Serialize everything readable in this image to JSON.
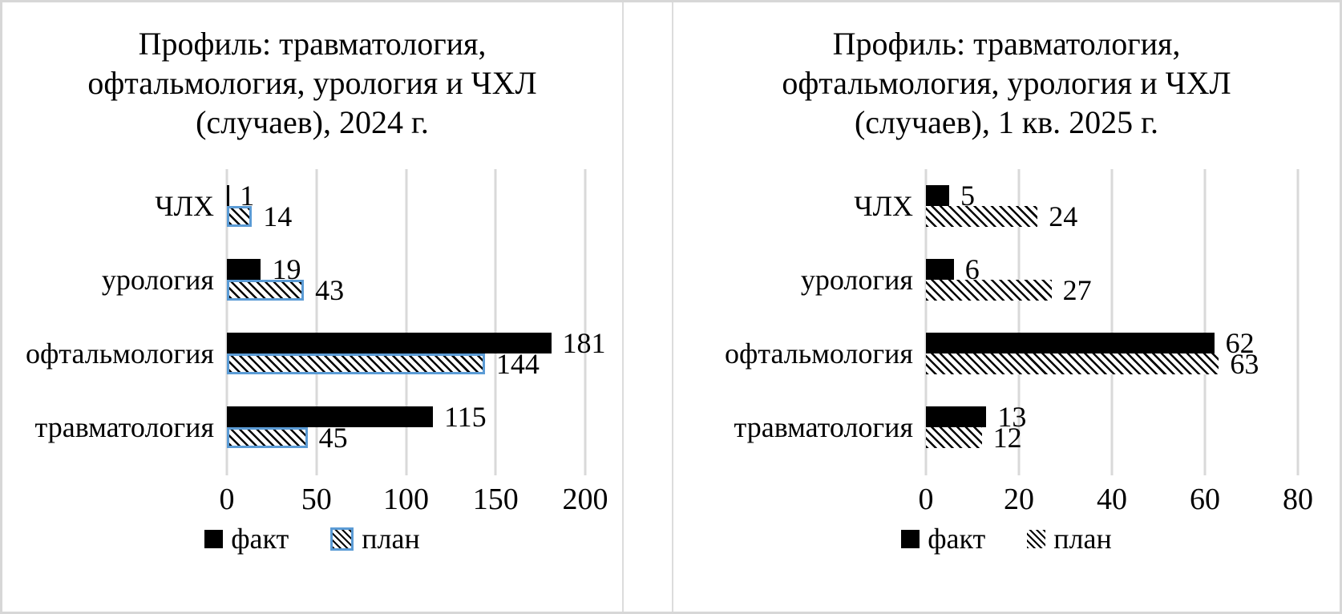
{
  "colors": {
    "bar_fill": "#000000",
    "plan_border_accent": "#5b9bd5",
    "gridline": "#d9d9d9",
    "frame_border": "#d7d7d7",
    "chart_divider": "#dcdcdc",
    "background": "#ffffff"
  },
  "chart_data": [
    {
      "type": "bar",
      "orientation": "horizontal",
      "title": "Профиль: травматология,\nофтальмология, урология и ЧХЛ\n(случаев), 2024 г.",
      "categories": [
        "ЧЛХ",
        "урология",
        "офтальмология",
        "травматология"
      ],
      "series": [
        {
          "name": "факт",
          "style": "solid-black",
          "values": [
            1,
            19,
            181,
            115
          ]
        },
        {
          "name": "план",
          "style": "hatch-diagonal-blue-border",
          "values": [
            14,
            43,
            144,
            45
          ]
        }
      ],
      "xlim": [
        0,
        200
      ],
      "xticks": [
        0,
        50,
        100,
        150,
        200
      ],
      "grid": true,
      "data_labels": true,
      "legend_position": "bottom"
    },
    {
      "type": "bar",
      "orientation": "horizontal",
      "title": "Профиль: травматология,\nофтальмология, урология и ЧХЛ\n(случаев), 1 кв. 2025 г.",
      "categories": [
        "ЧЛХ",
        "урология",
        "офтальмология",
        "травматология"
      ],
      "series": [
        {
          "name": "факт",
          "style": "solid-black",
          "values": [
            5,
            6,
            62,
            13
          ]
        },
        {
          "name": "план",
          "style": "hatch-diagonal",
          "values": [
            24,
            27,
            63,
            12
          ]
        }
      ],
      "xlim": [
        0,
        80
      ],
      "xticks": [
        0,
        20,
        40,
        60,
        80
      ],
      "grid": true,
      "data_labels": true,
      "legend_position": "bottom"
    }
  ]
}
